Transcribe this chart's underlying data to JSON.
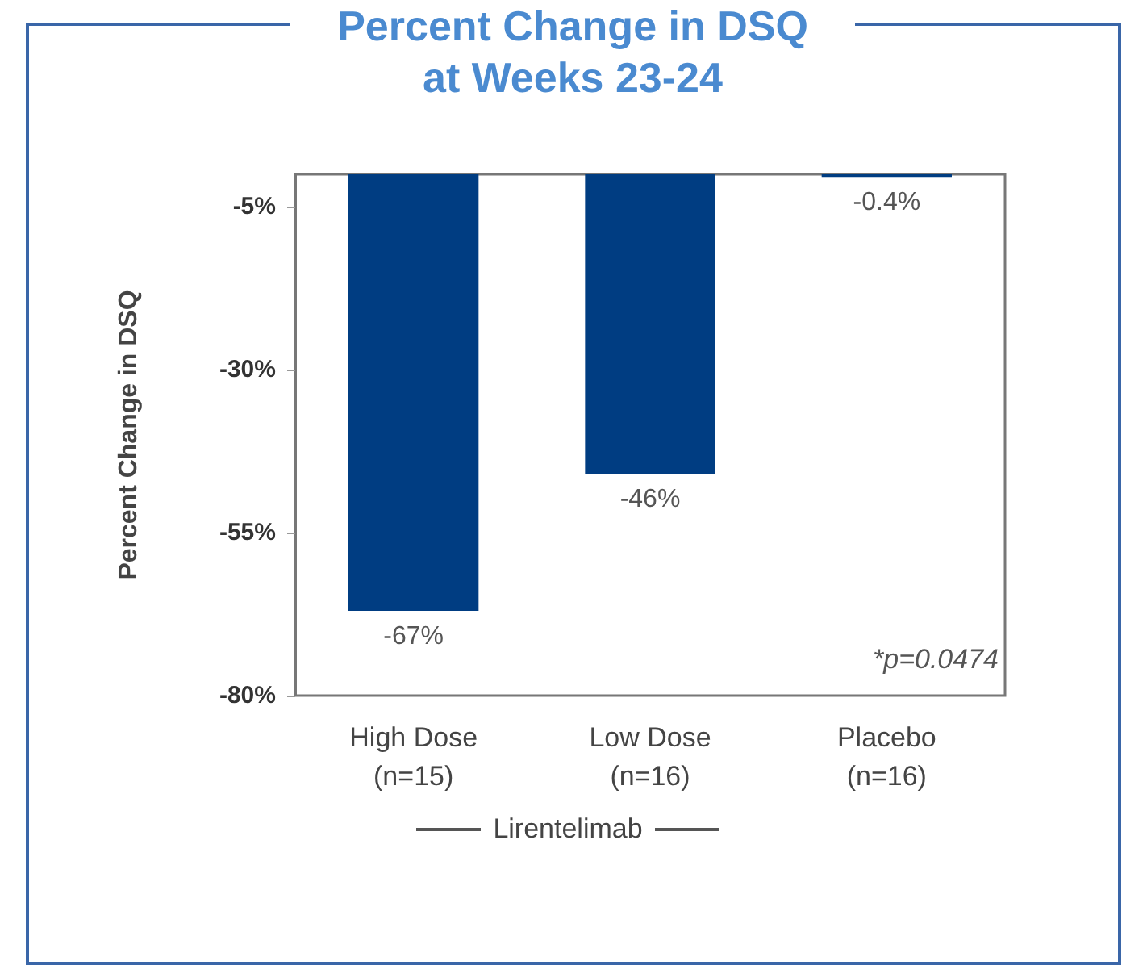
{
  "chart_data": {
    "type": "bar",
    "title": "Percent Change in DSQ\nat Weeks 23-24",
    "ylabel": "Percent Change in DSQ",
    "categories": [
      "High Dose\n(n=15)",
      "Low Dose\n(n=16)",
      "Placebo\n(n=16)"
    ],
    "values": [
      -67,
      -46,
      -0.4
    ],
    "color": "#003d82",
    "value_labels": [
      "-67%",
      "-46%",
      "-0.4%"
    ],
    "ylim": [
      -80,
      0
    ],
    "yticks": [
      {
        "value": -5,
        "label": "-5%"
      },
      {
        "value": -30,
        "label": "-30%"
      },
      {
        "value": -55,
        "label": "-55%"
      },
      {
        "value": -80,
        "label": "-80%"
      }
    ],
    "grid": false,
    "annotations": [
      "*p=0.0474",
      "Lirentelimab"
    ]
  }
}
